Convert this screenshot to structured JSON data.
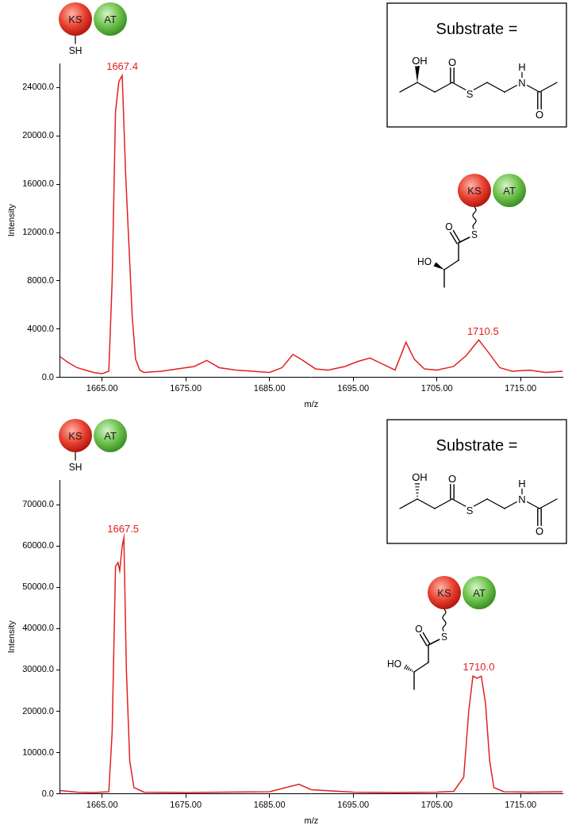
{
  "chart_data": [
    {
      "type": "line",
      "xlabel": "m/z",
      "ylabel": "Intensity",
      "color": "#e41f1f",
      "grid": false,
      "x": [
        1660,
        1661,
        1662,
        1663,
        1664,
        1665,
        1665.8,
        1666.2,
        1666.6,
        1667.0,
        1667.4,
        1667.8,
        1668.2,
        1668.6,
        1669,
        1669.5,
        1670,
        1672,
        1674,
        1676,
        1677.5,
        1679,
        1681,
        1683,
        1685,
        1686.5,
        1687.8,
        1689,
        1690.5,
        1692,
        1694,
        1695.5,
        1697,
        1698.5,
        1700,
        1701.3,
        1702.3,
        1703.5,
        1705,
        1707,
        1708.5,
        1710,
        1711,
        1712.5,
        1714,
        1716,
        1718,
        1720
      ],
      "values": [
        1700,
        1200,
        800,
        600,
        400,
        300,
        500,
        8000,
        22000,
        24500,
        25000,
        17000,
        11000,
        5000,
        1500,
        600,
        400,
        500,
        700,
        900,
        1400,
        800,
        600,
        500,
        400,
        800,
        1900,
        1400,
        700,
        600,
        900,
        1300,
        1600,
        1100,
        600,
        2900,
        1500,
        700,
        600,
        900,
        1800,
        3100,
        2200,
        800,
        500,
        600,
        400,
        500
      ],
      "xlim": [
        1660,
        1720
      ],
      "xticks": [
        {
          "value": 1665,
          "label": "1665.00"
        },
        {
          "value": 1675,
          "label": "1675.00"
        },
        {
          "value": 1685,
          "label": "1685.00"
        },
        {
          "value": 1695,
          "label": "1695.00"
        },
        {
          "value": 1705,
          "label": "1705.00"
        },
        {
          "value": 1715,
          "label": "1715.00"
        }
      ],
      "ylim": [
        0,
        26000
      ],
      "yticks": [
        {
          "value": 0,
          "label": "0.0"
        },
        {
          "value": 4000,
          "label": "4000.0"
        },
        {
          "value": 8000,
          "label": "8000.0"
        },
        {
          "value": 12000,
          "label": "12000.0"
        },
        {
          "value": 16000,
          "label": "16000.0"
        },
        {
          "value": 20000,
          "label": "20000.0"
        },
        {
          "value": 24000,
          "label": "24000.0"
        }
      ],
      "annotations": [
        {
          "text": "1667.4",
          "x": 1667.4,
          "y": 25000
        },
        {
          "text": "1710.5",
          "x": 1710.5,
          "y": 3100
        }
      ],
      "substrate_label": "Substrate =",
      "substrate_atoms": [
        "OH",
        "O",
        "S",
        "N",
        "H",
        "O"
      ],
      "enzyme_domains": [
        "KS",
        "AT"
      ],
      "free_thiol": "SH",
      "acyl_atoms": [
        "S",
        "O",
        "HO"
      ]
    },
    {
      "type": "line",
      "xlabel": "m/z",
      "ylabel": "Intensity",
      "color": "#e41f1f",
      "grid": false,
      "x": [
        1660,
        1662,
        1664,
        1665.8,
        1666.2,
        1666.6,
        1666.9,
        1667.1,
        1667.4,
        1667.6,
        1667.9,
        1668.3,
        1668.8,
        1670,
        1675,
        1680,
        1685,
        1688.5,
        1690,
        1695,
        1700,
        1705,
        1707,
        1708.2,
        1708.8,
        1709.3,
        1709.8,
        1710.3,
        1710.8,
        1711.3,
        1711.8,
        1713,
        1716,
        1720
      ],
      "values": [
        800,
        400,
        300,
        500,
        15000,
        55000,
        56000,
        54000,
        60000,
        62000,
        30000,
        8000,
        1500,
        400,
        300,
        400,
        500,
        2300,
        1000,
        400,
        300,
        400,
        600,
        4000,
        20000,
        28500,
        28000,
        28500,
        22000,
        8000,
        1500,
        500,
        400,
        500
      ],
      "xlim": [
        1660,
        1720
      ],
      "xticks": [
        {
          "value": 1665,
          "label": "1665.00"
        },
        {
          "value": 1675,
          "label": "1675.00"
        },
        {
          "value": 1685,
          "label": "1685.00"
        },
        {
          "value": 1695,
          "label": "1695.00"
        },
        {
          "value": 1705,
          "label": "1705.00"
        },
        {
          "value": 1715,
          "label": "1715.00"
        }
      ],
      "ylim": [
        0,
        76000
      ],
      "yticks": [
        {
          "value": 0,
          "label": "0.0"
        },
        {
          "value": 10000,
          "label": "10000.0"
        },
        {
          "value": 20000,
          "label": "20000.0"
        },
        {
          "value": 30000,
          "label": "30000.0"
        },
        {
          "value": 40000,
          "label": "40000.0"
        },
        {
          "value": 50000,
          "label": "50000.0"
        },
        {
          "value": 60000,
          "label": "60000.0"
        },
        {
          "value": 70000,
          "label": "70000.0"
        }
      ],
      "annotations": [
        {
          "text": "1667.5",
          "x": 1667.5,
          "y": 62000
        },
        {
          "text": "1710.0",
          "x": 1710.0,
          "y": 28500
        }
      ],
      "substrate_label": "Substrate =",
      "substrate_atoms": [
        "OH",
        "O",
        "S",
        "N",
        "H",
        "O"
      ],
      "enzyme_domains": [
        "KS",
        "AT"
      ],
      "free_thiol": "SH",
      "acyl_atoms": [
        "S",
        "O",
        "HO"
      ]
    }
  ]
}
